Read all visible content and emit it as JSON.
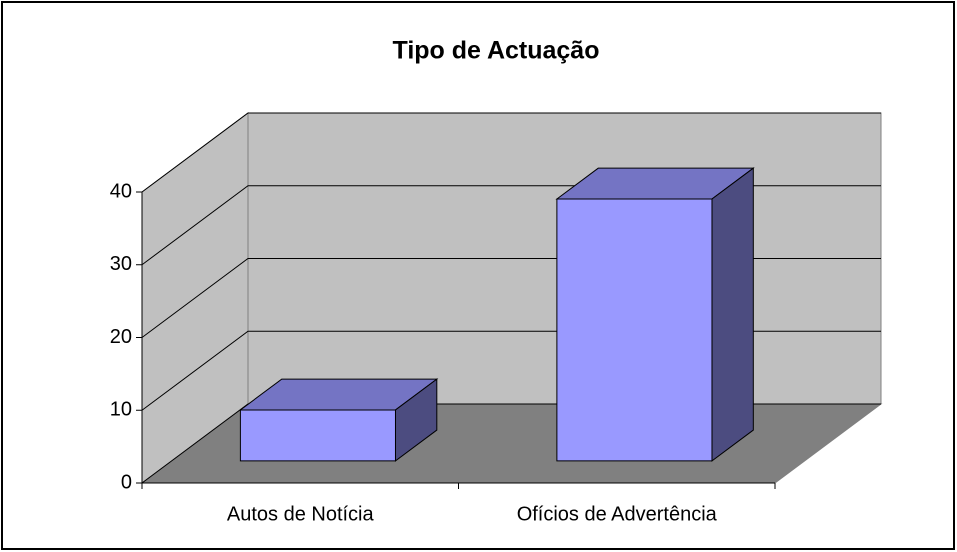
{
  "chart_data": {
    "type": "bar3d",
    "title": "Tipo de Actuação",
    "categories": [
      "Autos de Notícia",
      "Ofícios de Advertência"
    ],
    "values": [
      7,
      36
    ],
    "color": "#9999ff",
    "ylim": [
      0,
      40
    ],
    "yticks": [
      0,
      10,
      20,
      30,
      40
    ],
    "grid": true
  }
}
